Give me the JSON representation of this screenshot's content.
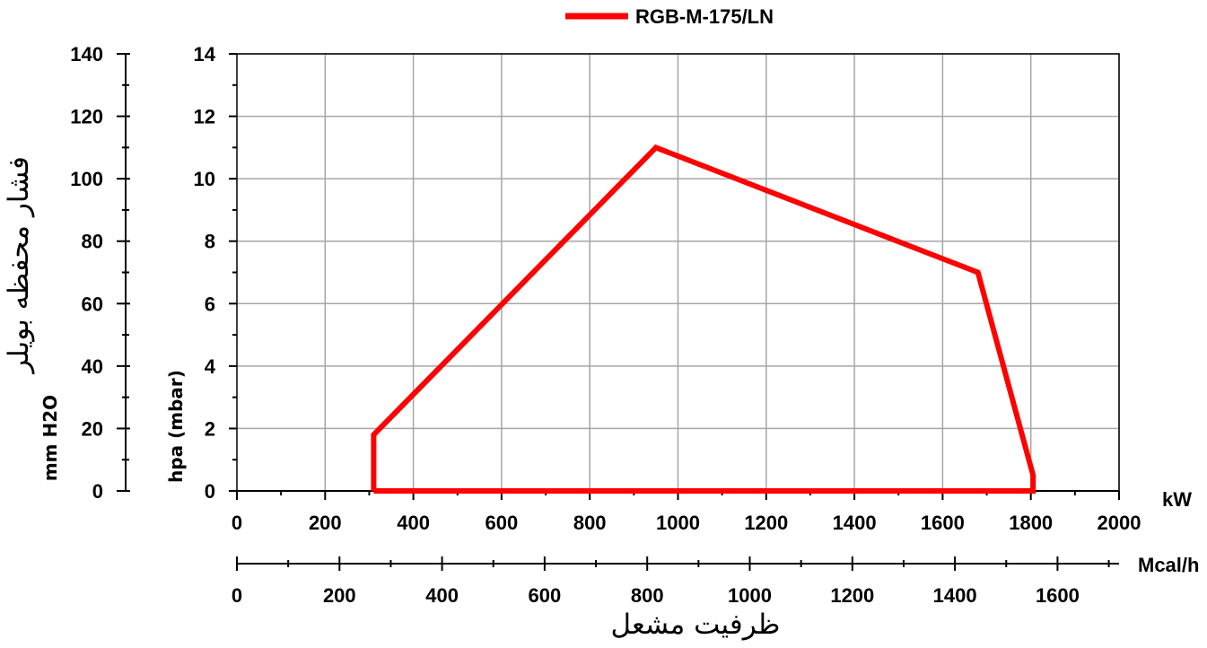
{
  "chart_data": {
    "type": "line",
    "legend": {
      "placement": "top-center",
      "entries": [
        {
          "name": "RGB-M-175/LN",
          "color": "#ff0000"
        }
      ]
    },
    "series": [
      {
        "name": "RGB-M-175/LN",
        "color": "#ff0000",
        "x": [
          310,
          310,
          950,
          1680,
          1805,
          1805,
          310
        ],
        "y": [
          0,
          1.8,
          11,
          7,
          0.5,
          0,
          0
        ]
      }
    ],
    "x_axis": {
      "unit": "kW",
      "range": [
        0,
        2000
      ],
      "ticks": [
        0,
        200,
        400,
        600,
        800,
        1000,
        1200,
        1400,
        1600,
        1800,
        2000
      ],
      "grid": true
    },
    "x2_axis": {
      "unit": "Mcal/h",
      "range": [
        0,
        1720
      ],
      "ticks": [
        0,
        200,
        400,
        600,
        800,
        1000,
        1200,
        1400,
        1600
      ],
      "label": "ظرفیت مشعل"
    },
    "y_axis": {
      "label": "hpa (mbar)",
      "range": [
        0,
        14
      ],
      "ticks": [
        0,
        2,
        4,
        6,
        8,
        10,
        12,
        14
      ],
      "grid": true
    },
    "y2_axis": {
      "label": "فشار محفظه بویلر",
      "unit": "mm H2O",
      "range": [
        0,
        140
      ],
      "ticks": [
        0,
        20,
        40,
        60,
        80,
        100,
        120,
        140
      ]
    }
  }
}
